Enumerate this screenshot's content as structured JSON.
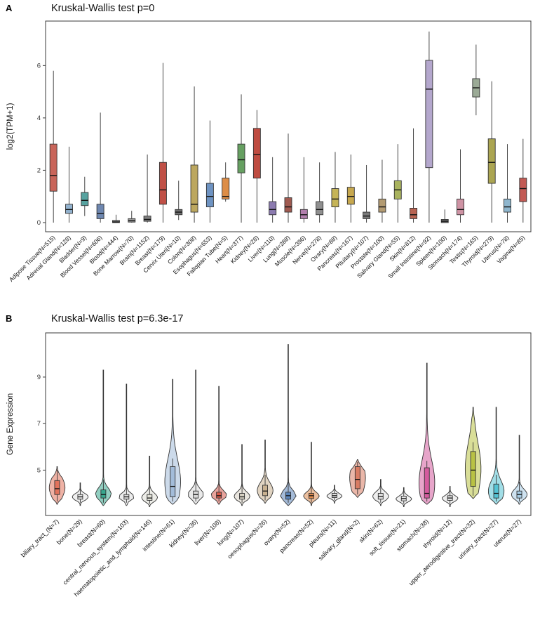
{
  "chart_data": [
    {
      "type": "box",
      "panel_label": "A",
      "title": "Kruskal-Wallis test p=0",
      "ylabel": "log2(TPM+1)",
      "yticks": [
        0,
        2,
        4,
        6
      ],
      "ylim": [
        -0.35,
        7.7
      ],
      "grid": false,
      "legend": "none",
      "categories": [
        "Adipose Tissue(N=515)",
        "Adrenal Gland(N=128)",
        "Bladder(N=9)",
        "Blood Vessel(N=606)",
        "Blood(N=444)",
        "Bone Marrow(N=70)",
        "Brain(N=1152)",
        "Breast(N=179)",
        "Cervix Uteri(N=10)",
        "Colon(N=308)",
        "Esophagus(N=653)",
        "Fallopian Tube(N=5)",
        "Heart(N=377)",
        "Kidney(N=28)",
        "Liver(N=110)",
        "Lung(N=288)",
        "Muscle(N=396)",
        "Nerve(N=278)",
        "Ovary(N=88)",
        "Pancreas(N=167)",
        "Pituitary(N=107)",
        "Prostate(N=100)",
        "Salivary Gland(N=55)",
        "Skin(N=812)",
        "Small Intestine(N=92)",
        "Spleen(N=100)",
        "Stomach(N=174)",
        "Testis(N=165)",
        "Thyroid(N=279)",
        "Uterus(N=78)",
        "Vagina(N=85)"
      ],
      "stats_format": [
        "whisker_low",
        "q1",
        "median",
        "q3",
        "whisker_high"
      ],
      "stats": [
        [
          0,
          1.2,
          1.8,
          3.0,
          5.8
        ],
        [
          0,
          0.35,
          0.5,
          0.7,
          2.9
        ],
        [
          0.25,
          0.65,
          0.85,
          1.15,
          1.75
        ],
        [
          0,
          0.15,
          0.35,
          0.7,
          4.2
        ],
        [
          0,
          0,
          0.02,
          0.08,
          0.3
        ],
        [
          0,
          0.02,
          0.07,
          0.15,
          0.45
        ],
        [
          0,
          0.05,
          0.12,
          0.25,
          2.6
        ],
        [
          0,
          0.7,
          1.25,
          2.3,
          6.1
        ],
        [
          0.1,
          0.3,
          0.4,
          0.5,
          1.6
        ],
        [
          0,
          0.4,
          0.7,
          2.2,
          5.2
        ],
        [
          0,
          0.6,
          1.0,
          1.5,
          3.9
        ],
        [
          0.8,
          0.9,
          1.0,
          1.7,
          2.3
        ],
        [
          0,
          1.9,
          2.4,
          3.0,
          4.9
        ],
        [
          0,
          1.7,
          2.6,
          3.6,
          4.3
        ],
        [
          0,
          0.3,
          0.5,
          0.8,
          2.5
        ],
        [
          0,
          0.4,
          0.6,
          0.95,
          3.4
        ],
        [
          0,
          0.15,
          0.3,
          0.5,
          2.5
        ],
        [
          0,
          0.3,
          0.5,
          0.8,
          2.3
        ],
        [
          0,
          0.6,
          0.9,
          1.3,
          2.7
        ],
        [
          0,
          0.7,
          1.0,
          1.35,
          2.6
        ],
        [
          0,
          0.15,
          0.25,
          0.4,
          2.2
        ],
        [
          0,
          0.4,
          0.6,
          0.9,
          2.4
        ],
        [
          0,
          0.9,
          1.25,
          1.6,
          3.0
        ],
        [
          0,
          0.15,
          0.3,
          0.55,
          3.6
        ],
        [
          0,
          2.1,
          5.1,
          6.2,
          7.3
        ],
        [
          0,
          0,
          0.05,
          0.12,
          0.5
        ],
        [
          0,
          0.3,
          0.5,
          0.9,
          2.8
        ],
        [
          4.1,
          4.8,
          5.15,
          5.5,
          6.8
        ],
        [
          0,
          1.5,
          2.3,
          3.2,
          5.4
        ],
        [
          0,
          0.4,
          0.6,
          0.9,
          3.0
        ],
        [
          0,
          0.8,
          1.3,
          1.7,
          3.2
        ]
      ],
      "colors": [
        "#C9655A",
        "#92B2CE",
        "#57A3A0",
        "#6E87B0",
        "#6B6B6B",
        "#9A9A9A",
        "#7D7D7D",
        "#C05046",
        "#6F6F6F",
        "#BCA75F",
        "#6E93C2",
        "#DD8D46",
        "#66A061",
        "#BF4C41",
        "#8C7BB0",
        "#A05A50",
        "#B27FAD",
        "#8F8F8F",
        "#C5B457",
        "#C7A84E",
        "#7A7A7A",
        "#B39B72",
        "#A9B35E",
        "#B86352",
        "#B4A7CD",
        "#6A6A6A",
        "#CE93A4",
        "#9BAA96",
        "#ABA552",
        "#8FB6CD",
        "#C25A54"
      ]
    },
    {
      "type": "violin",
      "panel_label": "B",
      "title": "Kruskal-Wallis test p=6.3e-17",
      "ylabel": "Gene Expression",
      "yticks": [
        5,
        7,
        9
      ],
      "ylim": [
        3.05,
        10.9
      ],
      "grid": false,
      "legend": "none",
      "categories": [
        "biliary_tract_(N=7)",
        "bone(N=29)",
        "breast(N=60)",
        "central_nervous_system(N=103)",
        "haematopoietic_and_lymphoid(N=146)",
        "intestine(N=61)",
        "kidney(N=36)",
        "liver(N=108)",
        "lung(N=107)",
        "oesophagus(N=26)",
        "ovary(N=52)",
        "pancreas(N=52)",
        "pleura(N=11)",
        "salivary_gland(N=2)",
        "skin(N=62)",
        "soft_tissue(N=21)",
        "stomach(N=38)",
        "thyroid(N=12)",
        "upper_aerodigestive_tract(N=32)",
        "urinary_tract(N=27)",
        "uterus(N=27)"
      ],
      "stats_format": [
        "whisker_low",
        "q1",
        "median",
        "q3",
        "whisker_high",
        "violin_max"
      ],
      "stats": [
        [
          3.65,
          3.95,
          4.2,
          4.55,
          5.0,
          5.15
        ],
        [
          3.6,
          3.75,
          3.85,
          3.95,
          4.3,
          4.45
        ],
        [
          3.6,
          3.8,
          3.95,
          4.15,
          4.6,
          9.3
        ],
        [
          3.6,
          3.75,
          3.85,
          3.95,
          4.4,
          8.7
        ],
        [
          3.55,
          3.7,
          3.8,
          3.95,
          4.3,
          5.6
        ],
        [
          3.65,
          3.85,
          4.3,
          5.15,
          5.5,
          8.9
        ],
        [
          3.65,
          3.8,
          3.95,
          4.1,
          4.5,
          9.3
        ],
        [
          3.65,
          3.8,
          3.9,
          4.05,
          4.4,
          8.6
        ],
        [
          3.6,
          3.75,
          3.85,
          4.0,
          4.4,
          6.1
        ],
        [
          3.7,
          3.9,
          4.1,
          4.35,
          4.8,
          6.3
        ],
        [
          3.6,
          3.75,
          3.9,
          4.05,
          4.5,
          10.4
        ],
        [
          3.6,
          3.78,
          3.9,
          4.0,
          4.4,
          6.2
        ],
        [
          3.7,
          3.82,
          3.9,
          4.0,
          4.25,
          4.35
        ],
        [
          3.95,
          4.2,
          4.6,
          5.15,
          5.35,
          5.45
        ],
        [
          3.6,
          3.75,
          3.87,
          4.0,
          4.45,
          4.6
        ],
        [
          3.55,
          3.68,
          3.78,
          3.88,
          4.15,
          4.25
        ],
        [
          3.65,
          3.8,
          4.0,
          5.1,
          5.4,
          9.6
        ],
        [
          3.55,
          3.7,
          3.8,
          3.9,
          4.2,
          4.3
        ],
        [
          3.9,
          4.3,
          5.0,
          5.8,
          6.2,
          7.7
        ],
        [
          3.65,
          3.8,
          4.0,
          4.4,
          4.8,
          7.7
        ],
        [
          3.65,
          3.8,
          3.95,
          4.1,
          4.5,
          6.5
        ]
      ],
      "colors": [
        "#E2725B",
        "#E3E3E3",
        "#39A78E",
        "#DCDCDC",
        "#DFDFD5",
        "#A3BCD9",
        "#D9D9D9",
        "#D6584A",
        "#D8D2C4",
        "#C9B190",
        "#5B84B8",
        "#DD8A4E",
        "#E0E0E0",
        "#D97C63",
        "#E0E0E0",
        "#E6E6E6",
        "#D45B9E",
        "#E0E0E0",
        "#B9C244",
        "#55C3D4",
        "#A6CBE3"
      ]
    }
  ]
}
